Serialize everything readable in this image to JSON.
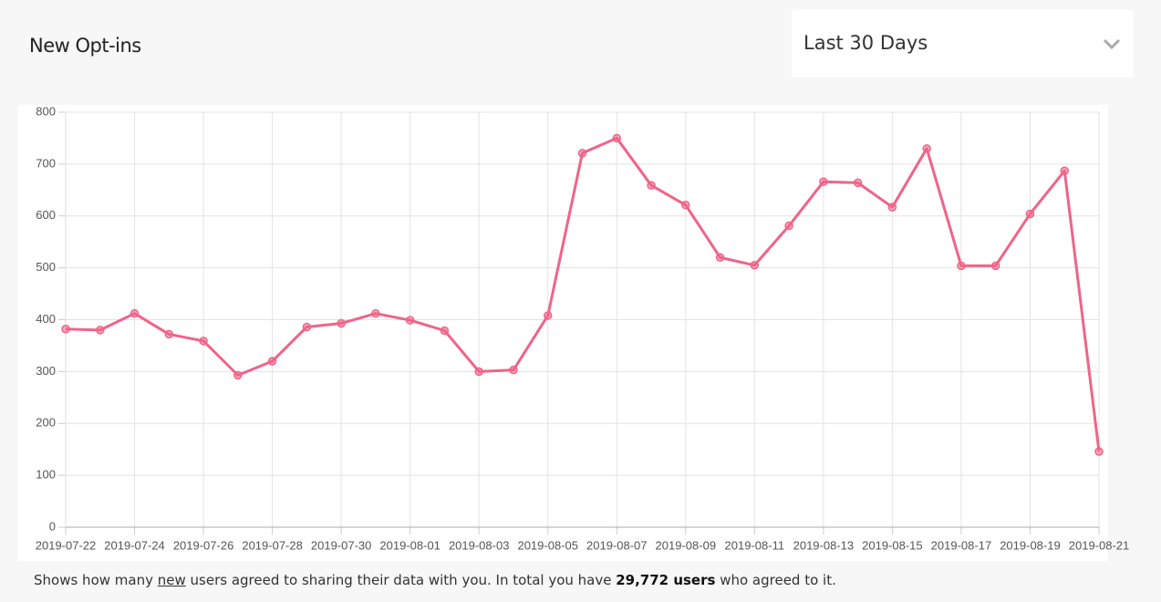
{
  "header": {
    "title": "New Opt-ins"
  },
  "dropdown": {
    "selected": "Last 30 Days"
  },
  "chart_data": {
    "type": "line",
    "categories": [
      "2019-07-22",
      null,
      "2019-07-24",
      null,
      "2019-07-26",
      null,
      "2019-07-28",
      null,
      "2019-07-30",
      null,
      "2019-08-01",
      null,
      "2019-08-03",
      null,
      "2019-08-05",
      null,
      "2019-08-07",
      null,
      "2019-08-09",
      null,
      "2019-08-11",
      null,
      "2019-08-13",
      null,
      "2019-08-15",
      null,
      "2019-08-17",
      null,
      "2019-08-19",
      null,
      "2019-08-21"
    ],
    "series": [
      {
        "color": "#f06488",
        "values": [
          382,
          380,
          412,
          372,
          359,
          293,
          320,
          386,
          393,
          412,
          399,
          379,
          300,
          303,
          408,
          721,
          750,
          659,
          621,
          520,
          505,
          581,
          666,
          664,
          617,
          730,
          504,
          504,
          604,
          687,
          146
        ]
      }
    ],
    "ylim": [
      0,
      800
    ],
    "yticks": [
      0,
      100,
      200,
      300,
      400,
      500,
      600,
      700,
      800
    ],
    "grid": true
  },
  "footer": {
    "before": "Shows how many ",
    "link": "new",
    "middle": " users agreed to sharing their data with you. In total you have ",
    "total": "29,772 users",
    "after": " who agreed to it."
  }
}
